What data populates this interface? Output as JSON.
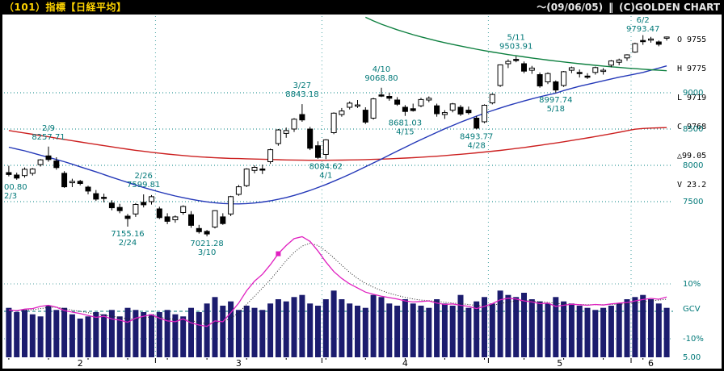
{
  "title_bar": {
    "left": "（101）指標【日経平均】",
    "period": "〜(09/06/05)",
    "separator": "‖",
    "copyright": "(C)GOLDEN CHART"
  },
  "quote": {
    "lines": [
      "O 9755",
      "H 9775",
      "L 9719",
      "C 9768",
      "△99.05",
      "V 23.2"
    ]
  },
  "axes": {
    "price_ticks": [
      "9000",
      "8500",
      "8000",
      "7500"
    ],
    "lower_ticks": [
      "10%",
      "GCV",
      "-10%",
      "5.00"
    ]
  },
  "chart_data": {
    "type": "candlestick",
    "title": "指標【日経平均】",
    "instrument": "日経平均",
    "period_shown": "2009/02/02 - 2009/06/05",
    "price_gridlines": [
      9000,
      8500,
      8000,
      7500
    ],
    "gcv_gridlines": [
      10,
      0,
      -10
    ],
    "ylim": [
      7000,
      10050
    ],
    "dates": [
      "2/2",
      "2/3",
      "2/4",
      "2/5",
      "2/6",
      "2/9",
      "2/10",
      "2/12",
      "2/13",
      "2/16",
      "2/17",
      "2/18",
      "2/19",
      "2/20",
      "2/23",
      "2/24",
      "2/25",
      "2/26",
      "2/27",
      "3/2",
      "3/3",
      "3/4",
      "3/5",
      "3/6",
      "3/9",
      "3/10",
      "3/11",
      "3/12",
      "3/13",
      "3/16",
      "3/17",
      "3/18",
      "3/19",
      "3/23",
      "3/24",
      "3/25",
      "3/26",
      "3/27",
      "3/30",
      "3/31",
      "4/1",
      "4/2",
      "4/3",
      "4/6",
      "4/7",
      "4/8",
      "4/9",
      "4/10",
      "4/13",
      "4/14",
      "4/15",
      "4/16",
      "4/17",
      "4/20",
      "4/21",
      "4/22",
      "4/23",
      "4/24",
      "4/27",
      "4/28",
      "4/30",
      "5/1",
      "5/7",
      "5/8",
      "5/11",
      "5/12",
      "5/13",
      "5/14",
      "5/15",
      "5/18",
      "5/19",
      "5/20",
      "5/21",
      "5/22",
      "5/25",
      "5/26",
      "5/27",
      "5/28",
      "5/29",
      "6/1",
      "6/2",
      "6/3",
      "6/4",
      "6/5"
    ],
    "candles": [
      [
        7900,
        7994,
        7848,
        7873
      ],
      [
        7867,
        7900,
        7801,
        7825
      ],
      [
        7858,
        7971,
        7830,
        7945
      ],
      [
        7890,
        7962,
        7859,
        7949
      ],
      [
        8010,
        8087,
        7983,
        8076
      ],
      [
        8130,
        8258,
        8050,
        8080
      ],
      [
        8060,
        8111,
        7940,
        7969
      ],
      [
        7890,
        7920,
        7690,
        7705
      ],
      [
        7760,
        7815,
        7700,
        7779
      ],
      [
        7780,
        7800,
        7725,
        7750
      ],
      [
        7700,
        7720,
        7600,
        7645
      ],
      [
        7610,
        7660,
        7510,
        7534
      ],
      [
        7560,
        7610,
        7490,
        7557
      ],
      [
        7480,
        7520,
        7380,
        7416
      ],
      [
        7420,
        7470,
        7340,
        7376
      ],
      [
        7300,
        7330,
        7155,
        7268
      ],
      [
        7330,
        7480,
        7290,
        7461
      ],
      [
        7490,
        7600,
        7420,
        7457
      ],
      [
        7500,
        7590,
        7460,
        7568
      ],
      [
        7400,
        7430,
        7260,
        7280
      ],
      [
        7290,
        7340,
        7190,
        7229
      ],
      [
        7250,
        7310,
        7210,
        7290
      ],
      [
        7350,
        7450,
        7320,
        7433
      ],
      [
        7320,
        7370,
        7140,
        7173
      ],
      [
        7130,
        7180,
        7060,
        7086
      ],
      [
        7090,
        7110,
        7021,
        7054
      ],
      [
        7150,
        7380,
        7130,
        7376
      ],
      [
        7290,
        7340,
        7180,
        7198
      ],
      [
        7330,
        7580,
        7300,
        7569
      ],
      [
        7600,
        7730,
        7580,
        7704
      ],
      [
        7720,
        7960,
        7700,
        7949
      ],
      [
        7930,
        8000,
        7890,
        7972
      ],
      [
        7950,
        8010,
        7880,
        7945
      ],
      [
        8050,
        8230,
        8020,
        8215
      ],
      [
        8300,
        8500,
        8270,
        8488
      ],
      [
        8440,
        8520,
        8380,
        8479
      ],
      [
        8500,
        8650,
        8460,
        8636
      ],
      [
        8700,
        8843,
        8600,
        8626
      ],
      [
        8500,
        8530,
        8210,
        8236
      ],
      [
        8270,
        8330,
        8090,
        8109
      ],
      [
        8150,
        8360,
        8085,
        8351
      ],
      [
        8450,
        8730,
        8430,
        8719
      ],
      [
        8700,
        8790,
        8670,
        8749
      ],
      [
        8800,
        8880,
        8770,
        8857
      ],
      [
        8830,
        8900,
        8790,
        8832
      ],
      [
        8760,
        8800,
        8570,
        8595
      ],
      [
        8650,
        8930,
        8630,
        8916
      ],
      [
        8970,
        9069,
        8940,
        8964
      ],
      [
        8950,
        9000,
        8890,
        8924
      ],
      [
        8900,
        8940,
        8820,
        8842
      ],
      [
        8800,
        8830,
        8681,
        8742
      ],
      [
        8780,
        8850,
        8740,
        8755
      ],
      [
        8820,
        8930,
        8800,
        8907
      ],
      [
        8900,
        8950,
        8870,
        8924
      ],
      [
        8820,
        8850,
        8670,
        8711
      ],
      [
        8700,
        8760,
        8640,
        8727
      ],
      [
        8760,
        8860,
        8730,
        8847
      ],
      [
        8800,
        8830,
        8680,
        8707
      ],
      [
        8760,
        8810,
        8700,
        8726
      ],
      [
        8650,
        8680,
        8494,
        8512
      ],
      [
        8600,
        8840,
        8580,
        8828
      ],
      [
        8860,
        8990,
        8840,
        8977
      ],
      [
        9100,
        9390,
        9080,
        9385
      ],
      [
        9400,
        9460,
        9340,
        9432
      ],
      [
        9460,
        9504,
        9420,
        9451
      ],
      [
        9400,
        9430,
        9270,
        9298
      ],
      [
        9310,
        9370,
        9260,
        9340
      ],
      [
        9250,
        9280,
        9070,
        9093
      ],
      [
        9150,
        9280,
        9120,
        9265
      ],
      [
        9150,
        9170,
        8998,
        9038
      ],
      [
        9100,
        9300,
        9080,
        9290
      ],
      [
        9310,
        9360,
        9270,
        9344
      ],
      [
        9280,
        9320,
        9210,
        9264
      ],
      [
        9230,
        9270,
        9190,
        9225
      ],
      [
        9280,
        9360,
        9250,
        9347
      ],
      [
        9300,
        9340,
        9250,
        9310
      ],
      [
        9380,
        9450,
        9350,
        9438
      ],
      [
        9420,
        9470,
        9380,
        9451
      ],
      [
        9480,
        9530,
        9440,
        9522
      ],
      [
        9560,
        9690,
        9550,
        9677
      ],
      [
        9720,
        9793,
        9660,
        9704
      ],
      [
        9730,
        9770,
        9690,
        9741
      ],
      [
        9700,
        9720,
        9640,
        9668
      ],
      [
        9755,
        9775,
        9719,
        9768
      ]
    ],
    "volume": [
      23,
      21,
      22,
      20,
      19,
      24,
      22,
      23,
      20,
      18,
      19,
      21,
      20,
      22,
      19,
      23,
      22,
      21,
      20,
      21,
      22,
      20,
      19,
      23,
      21,
      25,
      28,
      24,
      26,
      22,
      24,
      23,
      22,
      25,
      27,
      26,
      28,
      29,
      25,
      24,
      27,
      31,
      27,
      25,
      24,
      23,
      29,
      28,
      25,
      24,
      27,
      25,
      24,
      23,
      27,
      25,
      24,
      29,
      23,
      26,
      28,
      25,
      31,
      29,
      28,
      30,
      27,
      26,
      25,
      28,
      26,
      25,
      24,
      23,
      22,
      23,
      24,
      25,
      27,
      28,
      29,
      27,
      25,
      23
    ],
    "ma_red": [
      8480,
      8462,
      8445,
      8428,
      8410,
      8393,
      8375,
      8357,
      8340,
      8322,
      8305,
      8288,
      8271,
      8254,
      8238,
      8222,
      8207,
      8193,
      8180,
      8168,
      8156,
      8145,
      8135,
      8126,
      8118,
      8111,
      8105,
      8100,
      8096,
      8093,
      8090,
      8087,
      8084,
      8081,
      8078,
      8075,
      8073,
      8071,
      8070,
      8070,
      8070,
      8071,
      8072,
      8074,
      8076,
      8079,
      8082,
      8086,
      8090,
      8095,
      8100,
      8106,
      8112,
      8119,
      8126,
      8134,
      8143,
      8152,
      8162,
      8172,
      8183,
      8194,
      8206,
      8219,
      8232,
      8246,
      8261,
      8276,
      8292,
      8308,
      8325,
      8342,
      8360,
      8378,
      8397,
      8416,
      8436,
      8456,
      8477,
      8498,
      8508,
      8513,
      8517,
      8520
    ],
    "ma_blue": [
      8250,
      8225,
      8200,
      8170,
      8140,
      8110,
      8080,
      8050,
      8015,
      7980,
      7945,
      7910,
      7873,
      7836,
      7800,
      7764,
      7729,
      7695,
      7663,
      7633,
      7605,
      7578,
      7554,
      7532,
      7513,
      7497,
      7484,
      7475,
      7470,
      7469,
      7473,
      7481,
      7494,
      7511,
      7532,
      7557,
      7586,
      7619,
      7655,
      7694,
      7736,
      7781,
      7828,
      7877,
      7928,
      7980,
      8033,
      8087,
      8141,
      8195,
      8249,
      8302,
      8354,
      8405,
      8455,
      8503,
      8549,
      8594,
      8637,
      8678,
      8717,
      8754,
      8790,
      8824,
      8856,
      8887,
      8916,
      8944,
      8970,
      8995,
      9030,
      9060,
      9090,
      9115,
      9140,
      9165,
      9190,
      9215,
      9235,
      9258,
      9280,
      9310,
      9340,
      9370
    ],
    "ma_green": [
      null,
      null,
      null,
      null,
      null,
      null,
      null,
      null,
      null,
      null,
      null,
      null,
      null,
      null,
      null,
      null,
      null,
      null,
      null,
      null,
      null,
      null,
      null,
      null,
      null,
      null,
      null,
      null,
      null,
      null,
      null,
      null,
      null,
      null,
      null,
      null,
      null,
      null,
      null,
      null,
      null,
      null,
      null,
      null,
      null,
      10040,
      9990,
      9945,
      9905,
      9868,
      9833,
      9800,
      9770,
      9742,
      9715,
      9690,
      9666,
      9643,
      9621,
      9600,
      9580,
      9561,
      9543,
      9526,
      9510,
      9494,
      9479,
      9464,
      9450,
      9437,
      9424,
      9412,
      9400,
      9389,
      9378,
      9368,
      9358,
      9349,
      9340,
      9332,
      9324,
      9317,
      9310,
      9303
    ],
    "gcv": [
      0.5,
      0.2,
      0.8,
      1.0,
      1.8,
      2.2,
      1.5,
      0.3,
      -0.3,
      -0.8,
      -1.5,
      -2.2,
      -1.8,
      -2.8,
      -3.2,
      -4.0,
      -2.5,
      -1.8,
      -1.2,
      -2.5,
      -3.5,
      -3.8,
      -2.8,
      -4.2,
      -5.0,
      -5.5,
      -3.5,
      -3.8,
      -0.5,
      3.0,
      7.5,
      11.0,
      13.5,
      17.0,
      21.0,
      24.0,
      26.5,
      27.2,
      25.5,
      22.0,
      18.0,
      14.5,
      12.0,
      10.0,
      8.5,
      7.0,
      6.2,
      5.5,
      5.0,
      4.5,
      3.8,
      3.4,
      3.6,
      3.8,
      3.0,
      2.5,
      2.7,
      2.2,
      1.8,
      1.0,
      1.8,
      2.8,
      4.2,
      4.8,
      4.5,
      3.8,
      3.4,
      2.8,
      3.0,
      1.8,
      2.2,
      2.6,
      2.4,
      2.2,
      2.5,
      2.3,
      2.7,
      3.0,
      3.2,
      3.8,
      4.3,
      4.7,
      4.4,
      5.2
    ],
    "gcv_signal": [
      0.3,
      0.3,
      0.4,
      0.6,
      1.0,
      1.4,
      1.5,
      1.0,
      0.4,
      0.0,
      -0.5,
      -1.0,
      -1.4,
      -1.8,
      -2.2,
      -2.8,
      -2.8,
      -2.4,
      -2.0,
      -2.2,
      -2.6,
      -3.0,
      -3.0,
      -3.4,
      -4.0,
      -4.6,
      -4.2,
      -3.8,
      -2.5,
      -0.5,
      2.5,
      5.5,
      8.5,
      11.5,
      15.0,
      18.5,
      21.5,
      23.8,
      24.8,
      24.0,
      22.0,
      19.5,
      16.8,
      14.2,
      12.0,
      10.2,
      8.8,
      7.6,
      6.6,
      5.8,
      5.1,
      4.5,
      4.1,
      3.9,
      3.6,
      3.3,
      3.0,
      2.8,
      2.5,
      2.1,
      1.9,
      2.2,
      2.8,
      3.4,
      3.8,
      3.9,
      3.8,
      3.5,
      3.3,
      2.9,
      2.7,
      2.6,
      2.5,
      2.4,
      2.4,
      2.4,
      2.5,
      2.6,
      2.8,
      3.0,
      3.4,
      3.8,
      4.1,
      4.4
    ],
    "gcv_marker": {
      "day": 35,
      "value": 21.0
    },
    "month_spans": [
      {
        "label": "2",
        "start": 1,
        "end": 19
      },
      {
        "label": "3",
        "start": 20,
        "end": 40
      },
      {
        "label": "4",
        "start": 41,
        "end": 61
      },
      {
        "label": "5",
        "start": 62,
        "end": 79
      },
      {
        "label": "6",
        "start": 80,
        "end": 84
      }
    ],
    "annotations": [
      {
        "day": 2,
        "lines": [
          "00.80",
          "2/3"
        ],
        "pos": "below",
        "align": "left"
      },
      {
        "day": 6,
        "lines": [
          "2/9",
          "8257.71"
        ],
        "pos": "above"
      },
      {
        "day": 16,
        "lines": [
          "7155.16",
          "2/24"
        ],
        "pos": "below"
      },
      {
        "day": 18,
        "lines": [
          "2/26",
          "7599.81"
        ],
        "pos": "above"
      },
      {
        "day": 26,
        "lines": [
          "7021.28",
          "3/10"
        ],
        "pos": "below"
      },
      {
        "day": 38,
        "lines": [
          "3/27",
          "8843.18"
        ],
        "pos": "above"
      },
      {
        "day": 41,
        "lines": [
          "8084.62",
          "4/1"
        ],
        "pos": "below"
      },
      {
        "day": 48,
        "lines": [
          "4/10",
          "9068.80"
        ],
        "pos": "above"
      },
      {
        "day": 51,
        "lines": [
          "8681.03",
          "4/15"
        ],
        "pos": "below"
      },
      {
        "day": 60,
        "lines": [
          "8493.77",
          "4/28"
        ],
        "pos": "below"
      },
      {
        "day": 65,
        "lines": [
          "5/11",
          "9503.91"
        ],
        "pos": "above"
      },
      {
        "day": 70,
        "lines": [
          "8997.74",
          "5/18"
        ],
        "pos": "below"
      },
      {
        "day": 81,
        "lines": [
          "6/2",
          "9793.47"
        ],
        "pos": "above"
      }
    ]
  }
}
